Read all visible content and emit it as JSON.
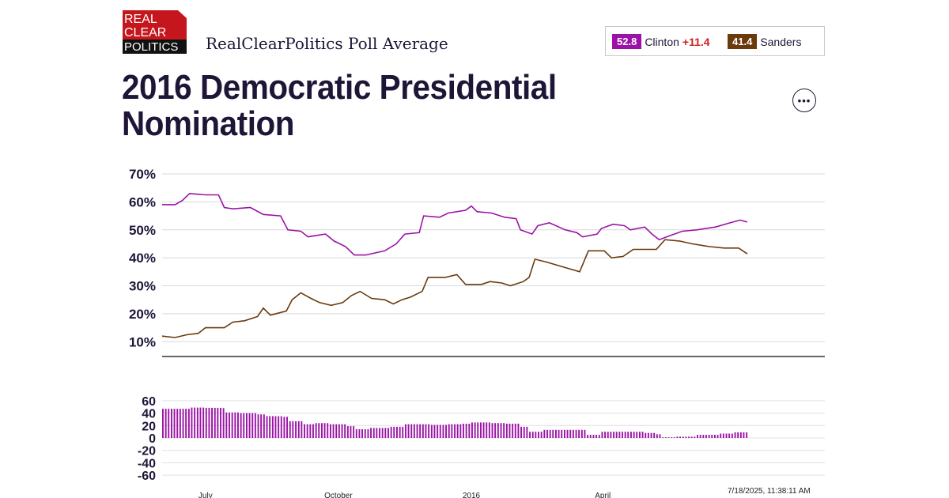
{
  "header": {
    "logo_lines": [
      "REAL",
      "CLEAR",
      "POLITICS"
    ],
    "brand_title": "RealClearPolitics Poll Average",
    "more_icon": "ellipsis-icon",
    "more_label": "•••"
  },
  "legend": [
    {
      "value": "52.8",
      "name": "Clinton",
      "spread": "+11.4",
      "color": "#9b13a6"
    },
    {
      "value": "41.4",
      "name": "Sanders",
      "spread": "",
      "color": "#6a3a0d"
    }
  ],
  "footer": {
    "timestamp": "7/18/2025, 11:38:11 AM"
  },
  "chart_data": [
    {
      "type": "line",
      "title": "2016 Democratic Presidential Nomination",
      "xlabel": "",
      "ylabel": "",
      "ylim": [
        5,
        70
      ],
      "y_ticks": [
        "70%",
        "60%",
        "50%",
        "40%",
        "30%",
        "20%",
        "10%"
      ],
      "x_ticks": [
        "July",
        "October",
        "2016",
        "April"
      ],
      "x_tick_dates": [
        "2015-07-01",
        "2015-10-01",
        "2016-01-01",
        "2016-04-01"
      ],
      "grid": true,
      "series": [
        {
          "name": "Clinton",
          "color": "#9b13a6",
          "points": [
            [
              "2015-06-01",
              59
            ],
            [
              "2015-06-10",
              59
            ],
            [
              "2015-06-15",
              60.5
            ],
            [
              "2015-06-20",
              63
            ],
            [
              "2015-07-01",
              62.5
            ],
            [
              "2015-07-10",
              62.5
            ],
            [
              "2015-07-14",
              58
            ],
            [
              "2015-07-20",
              57.5
            ],
            [
              "2015-08-01",
              58
            ],
            [
              "2015-08-10",
              55.5
            ],
            [
              "2015-08-22",
              55
            ],
            [
              "2015-08-27",
              50
            ],
            [
              "2015-09-05",
              49.5
            ],
            [
              "2015-09-10",
              47.5
            ],
            [
              "2015-09-22",
              48.5
            ],
            [
              "2015-09-28",
              46
            ],
            [
              "2015-10-06",
              44
            ],
            [
              "2015-10-12",
              41
            ],
            [
              "2015-10-20",
              41
            ],
            [
              "2015-11-02",
              42.5
            ],
            [
              "2015-11-10",
              45
            ],
            [
              "2015-11-16",
              48.5
            ],
            [
              "2015-11-26",
              49
            ],
            [
              "2015-11-29",
              55
            ],
            [
              "2015-12-10",
              54.5
            ],
            [
              "2015-12-16",
              56
            ],
            [
              "2015-12-28",
              57
            ],
            [
              "2016-01-01",
              58.5
            ],
            [
              "2016-01-05",
              56.5
            ],
            [
              "2016-01-15",
              56
            ],
            [
              "2016-01-24",
              54.5
            ],
            [
              "2016-02-01",
              54
            ],
            [
              "2016-02-04",
              50
            ],
            [
              "2016-02-12",
              48.5
            ],
            [
              "2016-02-16",
              51.5
            ],
            [
              "2016-02-24",
              52.5
            ],
            [
              "2016-03-06",
              50
            ],
            [
              "2016-03-14",
              49
            ],
            [
              "2016-03-18",
              47.5
            ],
            [
              "2016-03-28",
              48.5
            ],
            [
              "2016-03-31",
              50.5
            ],
            [
              "2016-04-08",
              52
            ],
            [
              "2016-04-16",
              51.5
            ],
            [
              "2016-04-20",
              50
            ],
            [
              "2016-04-30",
              51
            ],
            [
              "2016-05-05",
              48.5
            ],
            [
              "2016-05-10",
              46.5
            ],
            [
              "2016-05-18",
              48
            ],
            [
              "2016-05-26",
              49.5
            ],
            [
              "2016-06-05",
              50
            ],
            [
              "2016-06-18",
              51
            ],
            [
              "2016-06-28",
              52.5
            ],
            [
              "2016-07-05",
              53.5
            ],
            [
              "2016-07-10",
              52.8
            ]
          ]
        },
        {
          "name": "Sanders",
          "color": "#6a3a0d",
          "points": [
            [
              "2015-06-01",
              12
            ],
            [
              "2015-06-10",
              11.5
            ],
            [
              "2015-06-18",
              12.5
            ],
            [
              "2015-06-26",
              13
            ],
            [
              "2015-07-01",
              15
            ],
            [
              "2015-07-14",
              15
            ],
            [
              "2015-07-20",
              17
            ],
            [
              "2015-07-28",
              17.5
            ],
            [
              "2015-08-06",
              19
            ],
            [
              "2015-08-10",
              22
            ],
            [
              "2015-08-15",
              19.5
            ],
            [
              "2015-08-26",
              21
            ],
            [
              "2015-08-30",
              25
            ],
            [
              "2015-09-05",
              27.5
            ],
            [
              "2015-09-12",
              25.5
            ],
            [
              "2015-09-18",
              24
            ],
            [
              "2015-09-26",
              23
            ],
            [
              "2015-10-04",
              24
            ],
            [
              "2015-10-10",
              26.5
            ],
            [
              "2015-10-16",
              28
            ],
            [
              "2015-10-24",
              25.5
            ],
            [
              "2015-11-02",
              25
            ],
            [
              "2015-11-08",
              23.5
            ],
            [
              "2015-11-14",
              25
            ],
            [
              "2015-11-20",
              26
            ],
            [
              "2015-11-28",
              28
            ],
            [
              "2015-12-02",
              33
            ],
            [
              "2015-12-14",
              33
            ],
            [
              "2015-12-22",
              34
            ],
            [
              "2015-12-28",
              30.5
            ],
            [
              "2016-01-08",
              30.5
            ],
            [
              "2016-01-14",
              31.5
            ],
            [
              "2016-01-22",
              31
            ],
            [
              "2016-01-28",
              30
            ],
            [
              "2016-02-06",
              31.5
            ],
            [
              "2016-02-10",
              33
            ],
            [
              "2016-02-14",
              39.5
            ],
            [
              "2016-02-22",
              38.5
            ],
            [
              "2016-03-06",
              36.5
            ],
            [
              "2016-03-16",
              35
            ],
            [
              "2016-03-22",
              42.5
            ],
            [
              "2016-04-02",
              42.5
            ],
            [
              "2016-04-07",
              40
            ],
            [
              "2016-04-15",
              40.5
            ],
            [
              "2016-04-22",
              43
            ],
            [
              "2016-04-28",
              43
            ],
            [
              "2016-05-08",
              43
            ],
            [
              "2016-05-14",
              46.5
            ],
            [
              "2016-05-24",
              46
            ],
            [
              "2016-06-02",
              45
            ],
            [
              "2016-06-14",
              44
            ],
            [
              "2016-06-24",
              43.5
            ],
            [
              "2016-07-04",
              43.5
            ],
            [
              "2016-07-10",
              41.4
            ]
          ]
        }
      ]
    },
    {
      "type": "bar",
      "title": "",
      "ylabel": "",
      "ylim": [
        -65,
        65
      ],
      "y_ticks": [
        "60",
        "40",
        "20",
        "0",
        "-20",
        "-40",
        "-60"
      ],
      "grid": true,
      "series": [
        {
          "name": "Clinton spread",
          "color": "#9b13a6",
          "points": [
            [
              "2015-06-01",
              47
            ],
            [
              "2015-06-12",
              47
            ],
            [
              "2015-06-20",
              49
            ],
            [
              "2015-07-01",
              48.5
            ],
            [
              "2015-07-12",
              48
            ],
            [
              "2015-07-14",
              41
            ],
            [
              "2015-07-25",
              40
            ],
            [
              "2015-08-06",
              38
            ],
            [
              "2015-08-12",
              35
            ],
            [
              "2015-08-24",
              34
            ],
            [
              "2015-08-28",
              27
            ],
            [
              "2015-09-06",
              22
            ],
            [
              "2015-09-15",
              24
            ],
            [
              "2015-09-25",
              22
            ],
            [
              "2015-10-06",
              19
            ],
            [
              "2015-10-12",
              14
            ],
            [
              "2015-10-22",
              16
            ],
            [
              "2015-11-06",
              18
            ],
            [
              "2015-11-16",
              22
            ],
            [
              "2015-11-26",
              22
            ],
            [
              "2015-12-04",
              21
            ],
            [
              "2015-12-16",
              22
            ],
            [
              "2015-12-26",
              23
            ],
            [
              "2016-01-01",
              25
            ],
            [
              "2016-01-15",
              24
            ],
            [
              "2016-01-24",
              23
            ],
            [
              "2016-02-04",
              18
            ],
            [
              "2016-02-10",
              10
            ],
            [
              "2016-02-20",
              13
            ],
            [
              "2016-03-01",
              13
            ],
            [
              "2016-03-15",
              13
            ],
            [
              "2016-03-20",
              5
            ],
            [
              "2016-03-31",
              10
            ],
            [
              "2016-04-20",
              10
            ],
            [
              "2016-04-30",
              8
            ],
            [
              "2016-05-08",
              6
            ],
            [
              "2016-05-12",
              1
            ],
            [
              "2016-05-22",
              2
            ],
            [
              "2016-06-05",
              5
            ],
            [
              "2016-06-20",
              7
            ],
            [
              "2016-07-01",
              9
            ],
            [
              "2016-07-10",
              11.4
            ]
          ]
        }
      ]
    }
  ]
}
